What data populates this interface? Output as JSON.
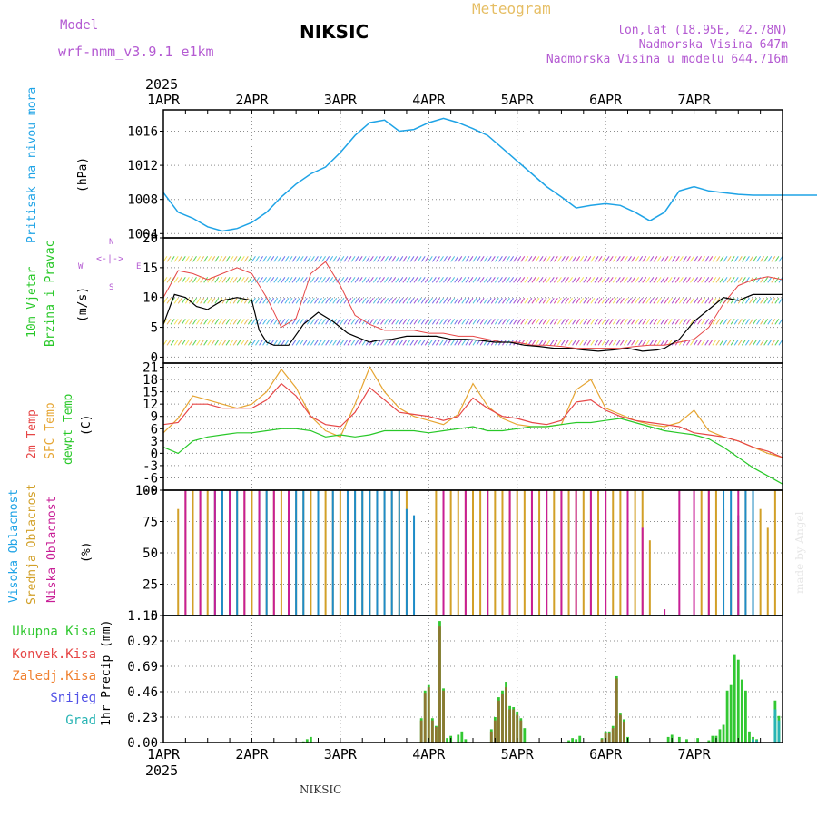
{
  "header": {
    "model_label": "Model",
    "model_name": "wrf-nmm_v3.9.1  e1km",
    "title": "NIKSIC",
    "meteogram": "Meteogram",
    "lonlat": "lon,lat (18.95E, 42.78N)",
    "elev": "Nadmorska Visina 647m",
    "elev_model": "Nadmorska Visina u modelu 644.716m",
    "year_top": "2025",
    "year_bottom": "2025",
    "footer": "NIKSIC",
    "watermark": "made by Angel"
  },
  "colors": {
    "pressure": "#1ea3e6",
    "temp2m": "#e64646",
    "sfc": "#e6a532",
    "dewpt": "#28c828",
    "wind_black": "#000000",
    "gust": "#e64646",
    "cloud_high": "#1e8cc8",
    "cloud_mid": "#d2a028",
    "cloud_low": "#c81e96",
    "precip_total": "#32c832",
    "precip_conv": "#e64646",
    "precip_frozen": "#f08232",
    "precip_snow": "#5050e6",
    "precip_hail": "#28b4b4",
    "grid": "#8c8c8c"
  },
  "x_days": [
    "1APR",
    "2APR",
    "3APR",
    "4APR",
    "5APR",
    "6APR",
    "7APR"
  ],
  "chart_data": [
    {
      "id": "pressure",
      "type": "line",
      "ylabel": "(hPa)",
      "side_label": "Pritisak na nivou mora",
      "ylim": [
        1003.5,
        1018.5
      ],
      "yticks": [
        1004,
        1008,
        1012,
        1016
      ],
      "grid": true,
      "x": [
        0,
        4,
        8,
        12,
        16,
        20,
        24,
        28,
        32,
        36,
        40,
        44,
        48,
        52,
        56,
        60,
        64,
        68,
        72,
        76,
        80,
        84,
        88,
        92,
        96,
        100,
        104,
        108,
        112,
        116,
        120,
        124,
        128,
        132,
        136,
        140,
        144,
        148,
        152,
        156,
        160,
        164,
        168,
        172,
        176,
        180
      ],
      "values": [
        1008.8,
        1006.5,
        1005.8,
        1004.8,
        1004.3,
        1004.6,
        1005.3,
        1006.5,
        1008.3,
        1009.8,
        1011.0,
        1011.8,
        1013.5,
        1015.5,
        1017.0,
        1017.3,
        1016.0,
        1016.2,
        1017.0,
        1017.5,
        1017.0,
        1016.3,
        1015.5,
        1014.0,
        1012.5,
        1011.0,
        1009.5,
        1008.3,
        1007.0,
        1007.3,
        1007.5,
        1007.3,
        1006.5,
        1005.5,
        1006.5,
        1009.0,
        1009.5,
        1009.0,
        1008.8,
        1008.6,
        1008.5,
        1008.5,
        1008.5,
        1008.5,
        1008.5,
        1008.5
      ]
    },
    {
      "id": "wind",
      "type": "line",
      "ylabel": "(m/s)",
      "side_label_1": "10m Vjetar",
      "side_label_2": "Brzina i Pravac",
      "compass": [
        "W",
        "E",
        "N",
        "S"
      ],
      "ylim": [
        -1,
        20
      ],
      "yticks": [
        0,
        5,
        10,
        15,
        20
      ],
      "grid": true,
      "series": [
        {
          "id": "speed",
          "x": [
            0,
            3,
            6,
            9,
            12,
            16,
            20,
            24,
            26,
            28,
            30,
            34,
            38,
            42,
            46,
            50,
            52,
            54,
            56,
            58,
            62,
            66,
            70,
            74,
            78,
            82,
            86,
            90,
            94,
            98,
            102,
            106,
            110,
            114,
            118,
            122,
            126,
            130,
            134,
            136,
            140,
            144,
            148,
            152,
            156,
            160,
            164,
            168
          ],
          "values": [
            5.5,
            10.5,
            10.0,
            8.5,
            8.0,
            9.5,
            10.0,
            9.5,
            4.5,
            2.5,
            2.0,
            2.0,
            5.5,
            7.5,
            6.0,
            4.0,
            3.5,
            3.0,
            2.5,
            2.8,
            3.0,
            3.5,
            3.5,
            3.5,
            3.0,
            3.0,
            2.8,
            2.5,
            2.5,
            2.0,
            1.8,
            1.5,
            1.5,
            1.2,
            1.0,
            1.2,
            1.5,
            1.0,
            1.2,
            1.5,
            3.0,
            6.0,
            8.0,
            10.0,
            9.5,
            10.5,
            10.5,
            10.5
          ]
        },
        {
          "id": "gust",
          "x": [
            0,
            4,
            8,
            12,
            16,
            20,
            24,
            28,
            32,
            36,
            40,
            44,
            48,
            52,
            56,
            60,
            64,
            68,
            72,
            76,
            80,
            84,
            88,
            92,
            96,
            100,
            104,
            108,
            112,
            116,
            120,
            124,
            128,
            132,
            136,
            140,
            144,
            148,
            152,
            156,
            160,
            164,
            168
          ],
          "values": [
            10.0,
            14.5,
            14.0,
            13.0,
            14.0,
            15.0,
            14.0,
            10.0,
            5.0,
            6.5,
            14.0,
            16.0,
            12.0,
            7.0,
            5.5,
            4.5,
            4.5,
            4.5,
            4.0,
            4.0,
            3.5,
            3.5,
            3.0,
            2.5,
            2.5,
            2.0,
            2.0,
            1.8,
            1.5,
            1.5,
            1.5,
            1.5,
            1.8,
            2.0,
            2.0,
            2.5,
            3.0,
            5.0,
            9.0,
            12.0,
            13.0,
            13.5,
            13.0
          ]
        }
      ]
    },
    {
      "id": "temperature",
      "type": "line",
      "ylabel": "(C)",
      "side_label_1": "2m Temp",
      "side_label_2": "SFC Temp",
      "side_label_3": "dewpt Temp",
      "ylim": [
        -9,
        22
      ],
      "yticks": [
        -9,
        -6,
        -3,
        0,
        3,
        6,
        9,
        12,
        15,
        18,
        21
      ],
      "grid": true,
      "series": [
        {
          "id": "temp2m",
          "x": [
            0,
            4,
            8,
            12,
            16,
            20,
            24,
            28,
            32,
            36,
            40,
            44,
            48,
            52,
            56,
            60,
            64,
            68,
            72,
            76,
            80,
            84,
            88,
            92,
            96,
            100,
            104,
            108,
            112,
            116,
            120,
            124,
            128,
            132,
            136,
            140,
            144,
            148,
            152,
            156,
            160,
            164,
            168
          ],
          "values": [
            7.0,
            7.5,
            12.0,
            12.0,
            11.0,
            11.0,
            11.0,
            13.0,
            17.0,
            14.0,
            9.0,
            7.0,
            6.5,
            10.0,
            16.0,
            13.0,
            10.0,
            9.5,
            9.0,
            8.0,
            9.0,
            13.5,
            11.0,
            9.0,
            8.5,
            7.5,
            7.0,
            8.0,
            12.5,
            13.0,
            10.5,
            9.0,
            8.0,
            7.5,
            7.0,
            6.5,
            5.0,
            4.5,
            4.0,
            3.0,
            1.5,
            0.5,
            -1.0
          ]
        },
        {
          "id": "sfc",
          "x": [
            0,
            4,
            8,
            12,
            16,
            20,
            24,
            28,
            32,
            36,
            40,
            44,
            48,
            52,
            56,
            60,
            64,
            68,
            72,
            76,
            80,
            84,
            88,
            92,
            96,
            100,
            104,
            108,
            112,
            116,
            120,
            124,
            128,
            132,
            136,
            140,
            144,
            148,
            152,
            156,
            160,
            164,
            168
          ],
          "values": [
            5.0,
            8.5,
            14.0,
            13.0,
            12.0,
            11.0,
            12.0,
            15.0,
            20.5,
            16.0,
            9.0,
            5.5,
            4.0,
            12.0,
            21.0,
            15.0,
            11.0,
            9.0,
            8.0,
            7.0,
            9.5,
            17.0,
            11.5,
            8.5,
            7.0,
            6.5,
            6.5,
            7.0,
            15.5,
            18.0,
            11.0,
            9.5,
            8.0,
            7.0,
            6.5,
            7.5,
            10.5,
            5.5,
            4.0,
            3.0,
            1.5,
            0.0,
            -1.0
          ]
        },
        {
          "id": "dewpt",
          "x": [
            0,
            4,
            8,
            12,
            16,
            20,
            24,
            28,
            32,
            36,
            40,
            44,
            48,
            52,
            56,
            60,
            64,
            68,
            72,
            76,
            80,
            84,
            88,
            92,
            96,
            100,
            104,
            108,
            112,
            116,
            120,
            124,
            128,
            132,
            136,
            140,
            144,
            148,
            152,
            156,
            160,
            164,
            168
          ],
          "values": [
            1.5,
            0.0,
            3.0,
            4.0,
            4.5,
            5.0,
            5.0,
            5.5,
            6.0,
            6.0,
            5.5,
            4.0,
            4.5,
            4.0,
            4.5,
            5.5,
            5.5,
            5.5,
            5.0,
            5.5,
            6.0,
            6.5,
            5.5,
            5.5,
            6.0,
            6.5,
            6.5,
            7.0,
            7.5,
            7.5,
            8.0,
            8.5,
            7.5,
            6.5,
            5.5,
            5.0,
            4.5,
            3.5,
            1.5,
            -1.0,
            -3.5,
            -5.5,
            -7.5
          ]
        }
      ]
    },
    {
      "id": "clouds",
      "type": "bar",
      "ylabel": "(%)",
      "side_label_1": "Visoka Oblacnost",
      "side_label_2": "Srednja Oblacnost",
      "side_label_3": "Niska Oblacnost",
      "ylim": [
        0,
        100
      ],
      "yticks": [
        0,
        25,
        50,
        75,
        100
      ],
      "grid": true,
      "series": [
        {
          "id": "high",
          "x": [
            14,
            16,
            18,
            20,
            26,
            28,
            36,
            38,
            42,
            46,
            50,
            52,
            54,
            56,
            58,
            60,
            62,
            64,
            66,
            68,
            152,
            154,
            156,
            158,
            160
          ],
          "values": [
            100,
            100,
            100,
            100,
            100,
            100,
            100,
            100,
            100,
            100,
            100,
            100,
            100,
            100,
            100,
            100,
            100,
            100,
            85,
            80,
            100,
            100,
            80,
            100,
            100
          ]
        },
        {
          "id": "mid",
          "x": [
            4,
            6,
            8,
            10,
            12,
            14,
            16,
            18,
            20,
            22,
            24,
            26,
            28,
            30,
            32,
            34,
            36,
            38,
            40,
            42,
            44,
            46,
            48,
            50,
            52,
            54,
            56,
            58,
            60,
            62,
            64,
            66,
            74,
            76,
            78,
            80,
            82,
            84,
            86,
            88,
            90,
            92,
            94,
            96,
            98,
            100,
            102,
            104,
            106,
            108,
            110,
            112,
            114,
            116,
            118,
            120,
            122,
            124,
            126,
            128,
            130,
            132,
            146,
            148,
            150,
            152,
            154,
            156,
            158,
            160,
            162,
            164,
            166,
            168
          ],
          "values": [
            85,
            100,
            100,
            100,
            100,
            100,
            100,
            100,
            100,
            100,
            100,
            100,
            100,
            100,
            100,
            100,
            100,
            100,
            100,
            100,
            100,
            100,
            100,
            100,
            100,
            100,
            100,
            100,
            100,
            100,
            100,
            100,
            100,
            100,
            100,
            100,
            100,
            100,
            100,
            100,
            100,
            100,
            100,
            100,
            100,
            100,
            100,
            100,
            100,
            100,
            100,
            100,
            100,
            100,
            100,
            100,
            100,
            100,
            100,
            100,
            100,
            60,
            100,
            100,
            100,
            85,
            75,
            55,
            100,
            100,
            85,
            70,
            100,
            100
          ]
        },
        {
          "id": "low",
          "x": [
            6,
            10,
            14,
            18,
            22,
            26,
            30,
            34,
            76,
            82,
            88,
            94,
            100,
            104,
            108,
            112,
            116,
            120,
            126,
            130,
            136,
            140,
            144,
            148,
            156
          ],
          "values": [
            100,
            100,
            100,
            100,
            100,
            100,
            100,
            100,
            100,
            100,
            100,
            100,
            100,
            100,
            100,
            100,
            100,
            100,
            100,
            70,
            5,
            100,
            100,
            100,
            100
          ]
        }
      ]
    },
    {
      "id": "precip",
      "type": "bar",
      "ylabel": "1hr Precip (mm)",
      "legend": [
        "Ukupna Kisa",
        "Konvek.Kisa",
        "Zaledj.Kisa",
        "Snijeg",
        "Grad"
      ],
      "ylim": [
        0,
        1.15
      ],
      "yticks": [
        0,
        0.23,
        0.46,
        0.69,
        0.92,
        1.15
      ],
      "grid": true,
      "series": [
        {
          "id": "total",
          "x": [
            38,
            39,
            40,
            70,
            71,
            72,
            73,
            74,
            75,
            76,
            77,
            78,
            80,
            81,
            82,
            89,
            90,
            91,
            92,
            93,
            94,
            95,
            96,
            97,
            98,
            110,
            111,
            112,
            113,
            119,
            120,
            121,
            122,
            123,
            124,
            125,
            126,
            137,
            138,
            140,
            142,
            145,
            148,
            149,
            150,
            151,
            152,
            153,
            154,
            155,
            156,
            157,
            158,
            159,
            160,
            161,
            166,
            167,
            168
          ],
          "values": [
            0.01,
            0.03,
            0.05,
            0.22,
            0.47,
            0.52,
            0.22,
            0.15,
            1.1,
            0.49,
            0.04,
            0.06,
            0.07,
            0.1,
            0.03,
            0.12,
            0.23,
            0.41,
            0.47,
            0.55,
            0.33,
            0.32,
            0.28,
            0.22,
            0.13,
            0.02,
            0.04,
            0.03,
            0.06,
            0.04,
            0.1,
            0.1,
            0.15,
            0.6,
            0.27,
            0.21,
            0.05,
            0.05,
            0.07,
            0.05,
            0.03,
            0.04,
            0.02,
            0.06,
            0.06,
            0.12,
            0.16,
            0.47,
            0.52,
            0.8,
            0.75,
            0.57,
            0.47,
            0.1,
            0.05,
            0.03,
            0.38,
            0.24,
            0.0
          ]
        },
        {
          "id": "convective",
          "x": [
            70,
            71,
            72,
            73,
            74,
            75,
            76,
            89,
            90,
            91,
            92,
            93,
            94,
            95,
            96,
            97,
            119,
            120,
            121,
            122,
            123,
            124,
            125
          ],
          "values": [
            0.2,
            0.45,
            0.5,
            0.2,
            0.14,
            1.05,
            0.47,
            0.1,
            0.2,
            0.38,
            0.44,
            0.5,
            0.3,
            0.3,
            0.25,
            0.2,
            0.03,
            0.09,
            0.09,
            0.13,
            0.58,
            0.25,
            0.19
          ]
        },
        {
          "id": "hail",
          "x": [
            160,
            161,
            166,
            167
          ],
          "values": [
            0.03,
            0.02,
            0.3,
            0.2
          ]
        }
      ]
    }
  ]
}
